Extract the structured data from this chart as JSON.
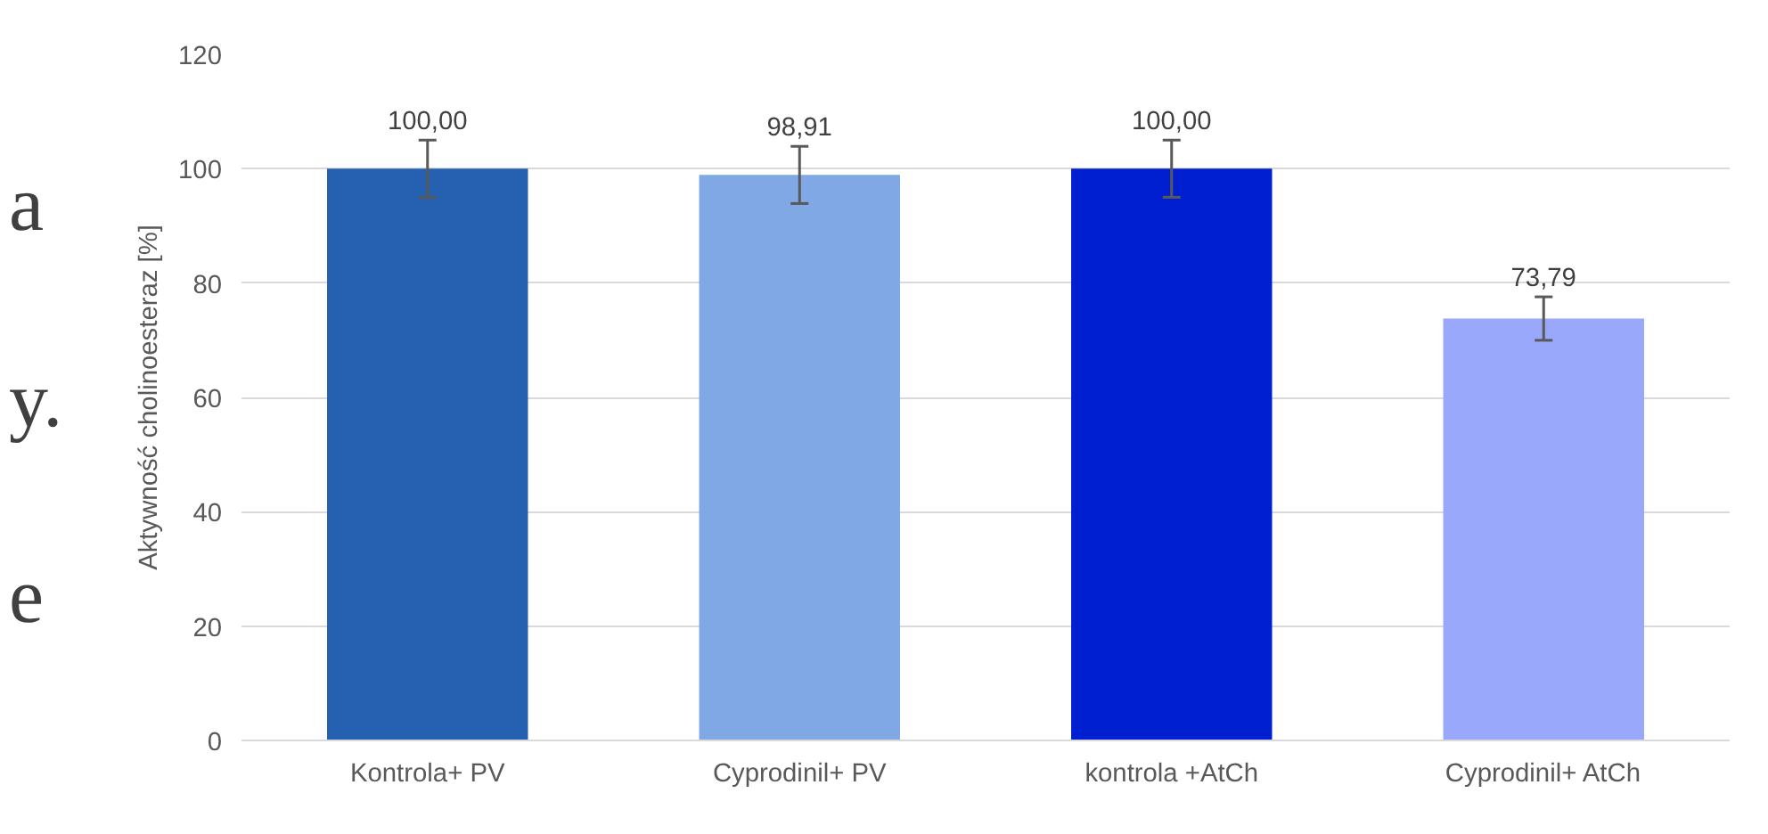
{
  "chart_data": {
    "type": "bar",
    "ylabel": "Aktywność cholinoesteraz [%]",
    "categories": [
      "Kontrola+ PV",
      "Cyprodinil+ PV",
      "kontrola +AtCh",
      "Cyprodinil+ AtCh"
    ],
    "values": [
      100,
      98.91,
      100,
      73.79
    ],
    "colors": [
      "#2660b0",
      "#7fa8e4",
      "#001fd0",
      "#9aa8fc"
    ],
    "errors": [
      5,
      5,
      5,
      3.8
    ],
    "value_labels": [
      "100,00",
      "98,91",
      "100,00",
      "73,79"
    ],
    "ylim": [
      0,
      120
    ],
    "yticks": [
      0,
      20,
      40,
      60,
      80,
      100,
      120
    ],
    "grid": "y",
    "annotations": [
      "a",
      "y.",
      "e"
    ]
  }
}
